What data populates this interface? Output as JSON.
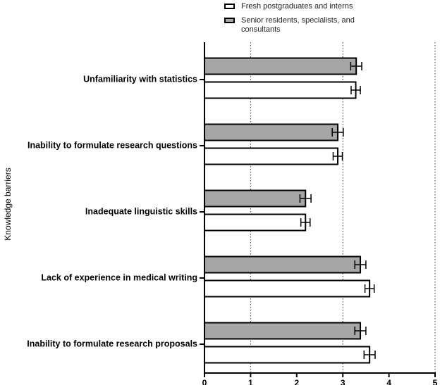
{
  "chart_data": {
    "type": "hbar",
    "y_label": "Knowledge barriers",
    "categories": [
      "Unfamiliarity with statistics",
      "Inability to formulate research questions",
      "Inadequate linguistic skills",
      "Lack of experience in medical writing",
      "Inability to formulate research proposals"
    ],
    "series": [
      {
        "name": "Fresh postgraduates and interns",
        "color": "#ffffff",
        "values": [
          3.28,
          2.89,
          2.19,
          3.58,
          3.58
        ],
        "errors": [
          0.1,
          0.1,
          0.1,
          0.1,
          0.12
        ]
      },
      {
        "name": "Senior residents, specialists, and consultants",
        "color": "#a6a6a6",
        "values": [
          3.29,
          2.89,
          2.19,
          3.38,
          3.38
        ],
        "errors": [
          0.12,
          0.12,
          0.12,
          0.12,
          0.12
        ]
      }
    ],
    "xlim": [
      0,
      5
    ],
    "xticks": [
      0,
      1,
      2,
      3,
      4,
      5
    ],
    "xgrid": [
      1,
      3,
      5
    ]
  }
}
